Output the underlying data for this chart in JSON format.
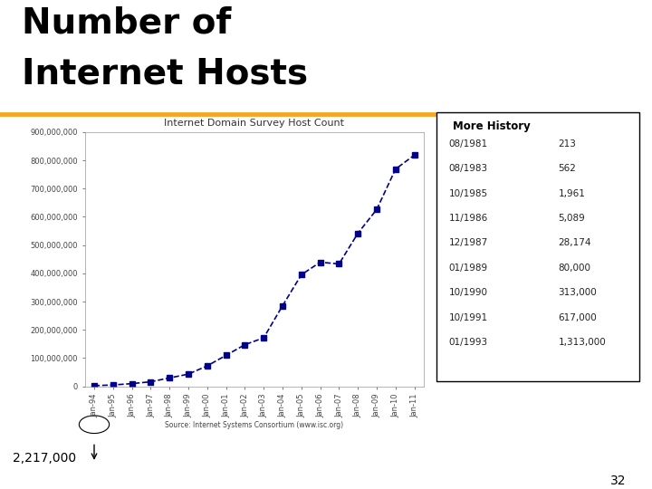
{
  "title_line1": "Number of",
  "title_line2": "Internet Hosts",
  "title_color": "#000000",
  "title_fontsize": 28,
  "title_fontweight": "bold",
  "separator_color": "#F5A623",
  "chart_title": "Internet Domain Survey Host Count",
  "source_text": "Source: Internet Systems Consortium (www.isc.org)",
  "annotation_text": "2,217,000",
  "page_number": "32",
  "background_color": "#FFFFFF",
  "chart_bg": "#FFFFFF",
  "line_color": "#00008B",
  "marker_color": "#00008B",
  "x_labels": [
    "Jan-94",
    "Jan-95",
    "Jan-96",
    "Jan-97",
    "Jan-98",
    "Jan-99",
    "Jan-00",
    "Jan-01",
    "Jan-02",
    "Jan-03",
    "Jan-04",
    "Jan-05",
    "Jan-06",
    "Jan-07",
    "Jan-08",
    "Jan-09",
    "Jan-10",
    "Jan-11"
  ],
  "y_data": [
    2217000,
    4852000,
    9472000,
    16146000,
    29670000,
    43230000,
    72398092,
    109574429,
    147344723,
    171638297,
    285139107,
    394991609,
    439286364,
    433193199,
    541677360,
    625961000,
    768913036,
    818374269
  ],
  "ylim_max": 900000000,
  "ytick_values": [
    0,
    100000000,
    200000000,
    300000000,
    400000000,
    500000000,
    600000000,
    700000000,
    800000000,
    900000000
  ],
  "ytick_labels": [
    "0",
    "100,000,000",
    "200,000,000",
    "300,000,000",
    "400,000,000",
    "500,000,000",
    "600,000,000",
    "700,000,000",
    "800,000,000",
    "900,000,000"
  ],
  "history_header": "More History",
  "history_data": [
    [
      "08/1981",
      "213"
    ],
    [
      "08/1983",
      "562"
    ],
    [
      "10/1985",
      "1,961"
    ],
    [
      "11/1986",
      "5,089"
    ],
    [
      "12/1987",
      "28,174"
    ],
    [
      "01/1989",
      "80,000"
    ],
    [
      "10/1990",
      "313,000"
    ],
    [
      "10/1991",
      "617,000"
    ],
    [
      "01/1993",
      "1,313,000"
    ]
  ]
}
